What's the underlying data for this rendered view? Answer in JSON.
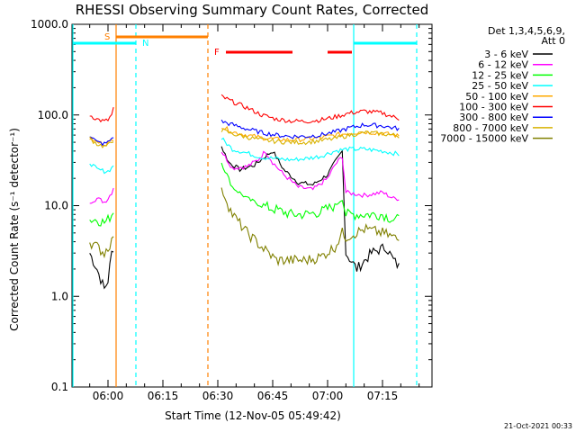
{
  "chart_data": {
    "type": "line",
    "title": "RHESSI Observing Summary Count Rates, Corrected",
    "xlabel": "Start Time (12-Nov-05 05:49:42)",
    "ylabel": "Corrected Count Rate (s⁻¹ detector⁻¹)",
    "y_scale": "log",
    "ylim": [
      0.1,
      1000
    ],
    "y_ticks": [
      "0.1",
      "1.0",
      "10.0",
      "100.0",
      "1000.0"
    ],
    "x_range_minutes": [
      5.8,
      61.7
    ],
    "x_ticks": [
      {
        "label": "06:00",
        "minute": 0
      },
      {
        "label": "06:15",
        "minute": 15
      },
      {
        "label": "06:30",
        "minute": 30
      },
      {
        "label": "06:45",
        "minute": 45
      },
      {
        "label": "07:00",
        "minute": 60
      },
      {
        "label": "07:15",
        "minute": 75
      }
    ],
    "legend_header": [
      "Det 1,3,4,5,6,9,",
      "Att 0"
    ],
    "legend_position": "right",
    "series": [
      {
        "name": "3 - 6 keV",
        "color": "#000000",
        "points": [
          [
            -5,
            3
          ],
          [
            -3,
            2
          ],
          [
            -1,
            1.2
          ],
          [
            0,
            1.5
          ],
          [
            1,
            3
          ],
          [
            2,
            4
          ],
          [
            30,
            null
          ],
          [
            31,
            45
          ],
          [
            33,
            30
          ],
          [
            36,
            25
          ],
          [
            40,
            28
          ],
          [
            43,
            35
          ],
          [
            45,
            40
          ],
          [
            48,
            25
          ],
          [
            52,
            18
          ],
          [
            56,
            17
          ],
          [
            60,
            22
          ],
          [
            62,
            30
          ],
          [
            64,
            40
          ],
          [
            65,
            3
          ],
          [
            68,
            2
          ],
          [
            72,
            3
          ],
          [
            76,
            3.5
          ],
          [
            78,
            2.5
          ],
          [
            80,
            2
          ]
        ]
      },
      {
        "name": "6 - 12 keV",
        "color": "#ff00ff",
        "points": [
          [
            -5,
            11
          ],
          [
            -3,
            12
          ],
          [
            -1,
            11
          ],
          [
            0,
            12
          ],
          [
            1,
            14
          ],
          [
            2,
            18
          ],
          [
            30,
            null
          ],
          [
            31,
            40
          ],
          [
            34,
            26
          ],
          [
            38,
            27
          ],
          [
            41,
            32
          ],
          [
            43,
            40
          ],
          [
            45,
            30
          ],
          [
            48,
            22
          ],
          [
            52,
            16
          ],
          [
            56,
            15
          ],
          [
            60,
            20
          ],
          [
            62,
            28
          ],
          [
            64,
            35
          ],
          [
            65,
            14
          ],
          [
            70,
            13
          ],
          [
            75,
            14
          ],
          [
            78,
            12
          ],
          [
            80,
            12
          ]
        ]
      },
      {
        "name": "12 - 25 keV",
        "color": "#00ff00",
        "points": [
          [
            -5,
            7
          ],
          [
            -3,
            7
          ],
          [
            -1,
            6.5
          ],
          [
            0,
            7
          ],
          [
            1,
            8
          ],
          [
            2,
            10
          ],
          [
            30,
            null
          ],
          [
            31,
            30
          ],
          [
            34,
            16
          ],
          [
            38,
            12
          ],
          [
            42,
            10
          ],
          [
            46,
            9
          ],
          [
            50,
            8
          ],
          [
            54,
            8
          ],
          [
            58,
            8.5
          ],
          [
            62,
            10
          ],
          [
            64,
            12
          ],
          [
            65,
            8
          ],
          [
            70,
            8
          ],
          [
            75,
            8
          ],
          [
            78,
            7
          ],
          [
            80,
            7
          ]
        ]
      },
      {
        "name": "25 - 50 keV",
        "color": "#00ffff",
        "points": [
          [
            -5,
            30
          ],
          [
            -3,
            25
          ],
          [
            -1,
            24
          ],
          [
            0,
            24
          ],
          [
            1,
            26
          ],
          [
            2,
            30
          ],
          [
            30,
            null
          ],
          [
            31,
            55
          ],
          [
            34,
            42
          ],
          [
            38,
            38
          ],
          [
            42,
            34
          ],
          [
            46,
            33
          ],
          [
            50,
            32
          ],
          [
            54,
            33
          ],
          [
            58,
            35
          ],
          [
            62,
            40
          ],
          [
            65,
            42
          ],
          [
            70,
            42
          ],
          [
            75,
            40
          ],
          [
            78,
            38
          ],
          [
            80,
            36
          ]
        ]
      },
      {
        "name": "50 - 100 keV",
        "color": "#ffaa00",
        "points": [
          [
            -5,
            55
          ],
          [
            -3,
            50
          ],
          [
            -1,
            48
          ],
          [
            0,
            49
          ],
          [
            1,
            52
          ],
          [
            2,
            58
          ],
          [
            30,
            null
          ],
          [
            31,
            75
          ],
          [
            34,
            65
          ],
          [
            38,
            60
          ],
          [
            42,
            56
          ],
          [
            46,
            54
          ],
          [
            50,
            53
          ],
          [
            54,
            54
          ],
          [
            58,
            56
          ],
          [
            62,
            60
          ],
          [
            66,
            63
          ],
          [
            70,
            65
          ],
          [
            75,
            63
          ],
          [
            78,
            60
          ],
          [
            80,
            58
          ]
        ]
      },
      {
        "name": "100 - 300 keV",
        "color": "#ff0000",
        "points": [
          [
            -5,
            100
          ],
          [
            -3,
            90
          ],
          [
            -1,
            85
          ],
          [
            0,
            88
          ],
          [
            1,
            100
          ],
          [
            2,
            140
          ],
          [
            30,
            null
          ],
          [
            31,
            160
          ],
          [
            34,
            140
          ],
          [
            38,
            120
          ],
          [
            42,
            100
          ],
          [
            46,
            90
          ],
          [
            50,
            86
          ],
          [
            54,
            85
          ],
          [
            58,
            88
          ],
          [
            62,
            95
          ],
          [
            66,
            105
          ],
          [
            70,
            110
          ],
          [
            75,
            105
          ],
          [
            78,
            95
          ],
          [
            80,
            90
          ]
        ]
      },
      {
        "name": "300 - 800 keV",
        "color": "#0000ff",
        "points": [
          [
            -5,
            60
          ],
          [
            -3,
            50
          ],
          [
            -1,
            48
          ],
          [
            0,
            50
          ],
          [
            1,
            55
          ],
          [
            2,
            62
          ],
          [
            30,
            null
          ],
          [
            31,
            85
          ],
          [
            34,
            78
          ],
          [
            38,
            70
          ],
          [
            42,
            64
          ],
          [
            46,
            60
          ],
          [
            50,
            58
          ],
          [
            54,
            58
          ],
          [
            58,
            60
          ],
          [
            62,
            65
          ],
          [
            66,
            72
          ],
          [
            70,
            78
          ],
          [
            75,
            76
          ],
          [
            78,
            72
          ],
          [
            80,
            70
          ]
        ]
      },
      {
        "name": "800 - 7000 keV",
        "color": "#d8b200",
        "points": [
          [
            -5,
            55
          ],
          [
            -3,
            48
          ],
          [
            -1,
            45
          ],
          [
            0,
            46
          ],
          [
            1,
            50
          ],
          [
            2,
            56
          ],
          [
            30,
            null
          ],
          [
            31,
            68
          ],
          [
            34,
            62
          ],
          [
            38,
            57
          ],
          [
            42,
            53
          ],
          [
            46,
            51
          ],
          [
            50,
            50
          ],
          [
            54,
            50
          ],
          [
            58,
            52
          ],
          [
            62,
            55
          ],
          [
            66,
            60
          ],
          [
            70,
            64
          ],
          [
            75,
            62
          ],
          [
            78,
            60
          ],
          [
            80,
            58
          ]
        ]
      },
      {
        "name": "7000 - 15000 keV",
        "color": "#808000",
        "points": [
          [
            -5,
            4
          ],
          [
            -3,
            3.5
          ],
          [
            -1,
            3
          ],
          [
            0,
            3.5
          ],
          [
            1,
            4
          ],
          [
            2,
            6
          ],
          [
            30,
            null
          ],
          [
            31,
            15
          ],
          [
            34,
            8
          ],
          [
            38,
            5
          ],
          [
            42,
            3.5
          ],
          [
            46,
            2.5
          ],
          [
            50,
            2.5
          ],
          [
            54,
            2.5
          ],
          [
            58,
            2.7
          ],
          [
            62,
            3.5
          ],
          [
            64,
            5
          ],
          [
            65,
            4.5
          ],
          [
            70,
            5.5
          ],
          [
            75,
            5
          ],
          [
            78,
            4.5
          ],
          [
            80,
            4
          ]
        ]
      }
    ],
    "annotations": [
      {
        "label": "S",
        "color": "#ff8000"
      },
      {
        "label": "N",
        "color": "#00ffff"
      },
      {
        "label": "F",
        "color": "#ff0000"
      }
    ]
  },
  "footer": {
    "timestamp": "21-Oct-2021 00:33"
  }
}
